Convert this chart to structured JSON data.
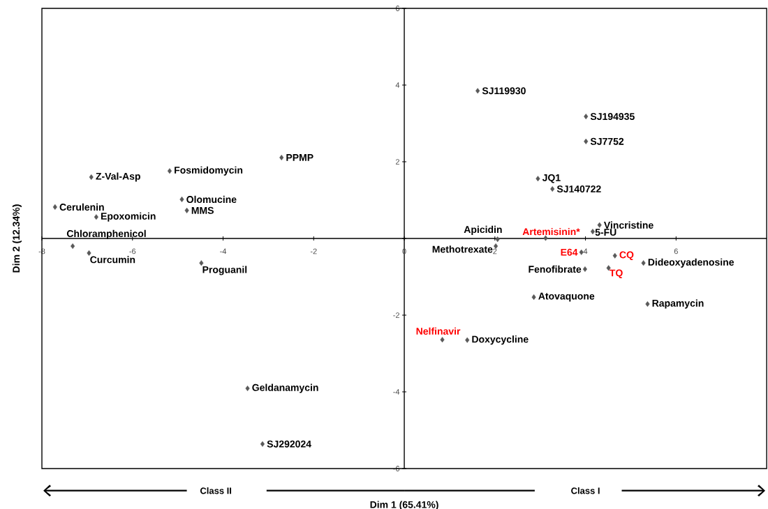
{
  "chart_data": {
    "type": "scatter",
    "xlabel": "Dim 1 (65.41%)",
    "ylabel": "Dim 2 (12.34%)",
    "xlim": [
      -8,
      8
    ],
    "ylim": [
      -6,
      6
    ],
    "xticks": [
      -8,
      -6,
      -4,
      -2,
      0,
      2,
      4,
      6
    ],
    "yticks": [
      -6,
      -4,
      -2,
      {
        "value": 0,
        "label": null
      },
      2,
      4,
      6
    ],
    "marker": "diamond",
    "grid": false,
    "annotations": [
      "Class II",
      "Class I",
      {
        "text": "SJ119930",
        "x": 1.62,
        "y": 3.85
      },
      {
        "text": "SJ194935",
        "x": 4.01,
        "y": 3.18
      },
      {
        "text": "SJ7752",
        "x": 4.01,
        "y": 2.53
      },
      {
        "text": "JQ1",
        "x": 2.95,
        "y": 1.56
      },
      {
        "text": "SJ140722",
        "x": 3.27,
        "y": 1.29
      },
      {
        "text": "PPMP",
        "x": -2.71,
        "y": 2.11
      },
      {
        "text": "Fosmidomycin",
        "x": -5.18,
        "y": 1.76
      },
      {
        "text": "Z-Val-Asp",
        "x": -6.91,
        "y": 1.6
      },
      {
        "text": "Olomucine",
        "x": -4.91,
        "y": 1.02
      },
      {
        "text": "MMS",
        "x": -4.8,
        "y": 0.73
      },
      {
        "text": "Cerulenin",
        "x": -7.71,
        "y": 0.82
      },
      {
        "text": "Epoxomicin",
        "x": -6.8,
        "y": 0.56
      },
      {
        "text": "Chloramphenicol",
        "x": -7.32,
        "y": -0.2
      },
      {
        "text": "Curcumin",
        "x": -6.96,
        "y": -0.38
      },
      {
        "text": "Proguanil",
        "x": -4.48,
        "y": -0.64
      },
      {
        "text": "Geldanamycin",
        "x": -3.46,
        "y": -3.91
      },
      {
        "text": "SJ292024",
        "x": -3.13,
        "y": -5.36
      },
      {
        "text": "Apicidin",
        "x": 2.06,
        "y": -0.02
      },
      {
        "text": "Methotrexate",
        "x": 2.02,
        "y": -0.2
      },
      {
        "text": "Vincristine",
        "x": 4.31,
        "y": 0.35
      },
      {
        "text": "5-FU",
        "x": 4.16,
        "y": 0.18
      },
      {
        "text": "Dideoxyadenosine",
        "x": 5.28,
        "y": -0.64
      },
      {
        "text": "Fenofibrate",
        "x": 3.99,
        "y": -0.8
      },
      {
        "text": "Atovaquone",
        "x": 2.86,
        "y": -1.53
      },
      {
        "text": "Rapamycin",
        "x": 5.37,
        "y": -1.71
      },
      {
        "text": "Doxycycline",
        "x": 1.39,
        "y": -2.65
      },
      {
        "text": "Artemisinin*",
        "x": 3.12,
        "y": 0.01
      },
      {
        "text": "E64",
        "x": 3.91,
        "y": -0.36
      },
      {
        "text": "CQ",
        "x": 4.65,
        "y": -0.45
      },
      {
        "text": "TQ",
        "x": 4.51,
        "y": -0.77
      },
      {
        "text": "Nelfinavir",
        "x": 0.84,
        "y": -2.64
      }
    ],
    "series": [
      {
        "color": "#595959",
        "x": [
          1.62,
          4.01,
          4.01,
          2.95,
          3.27,
          -2.71,
          -5.18,
          -6.91,
          -4.91,
          -4.8,
          -7.71,
          -6.8,
          -7.32,
          -6.96,
          -4.48,
          -3.46,
          -3.13,
          2.06,
          2.02,
          4.31,
          4.16,
          5.28,
          3.99,
          2.86,
          5.37,
          1.39
        ],
        "values": [
          3.85,
          3.18,
          2.53,
          1.56,
          1.29,
          2.11,
          1.76,
          1.6,
          1.02,
          0.73,
          0.82,
          0.56,
          -0.2,
          -0.38,
          -0.64,
          -3.91,
          -5.36,
          -0.02,
          -0.2,
          0.35,
          0.18,
          -0.64,
          -0.8,
          -1.53,
          -1.71,
          -2.65
        ]
      },
      {
        "color": "#595959",
        "x": [
          3.12,
          3.91,
          4.65,
          4.51,
          0.84
        ],
        "values": [
          0.01,
          -0.36,
          -0.45,
          -0.77,
          -2.64
        ]
      }
    ]
  }
}
